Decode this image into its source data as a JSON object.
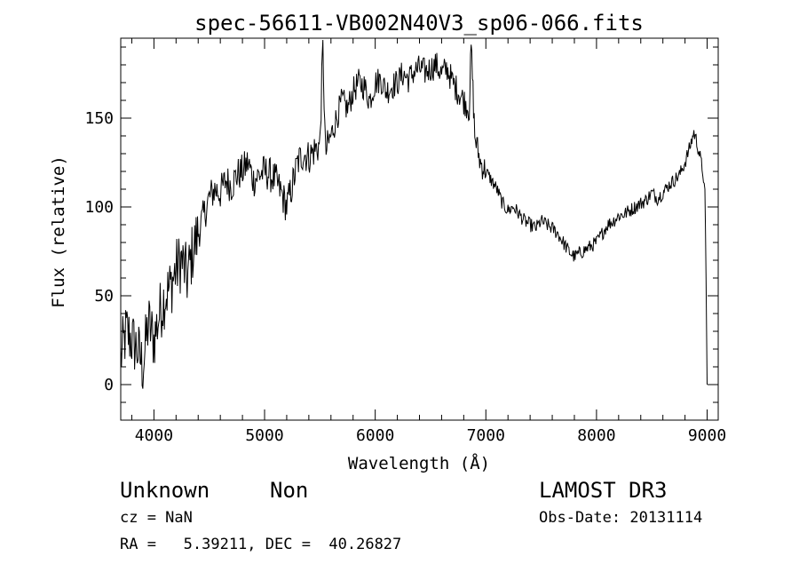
{
  "chart_data": {
    "type": "line",
    "title": "spec-56611-VB002N40V3_sp06-066.fits",
    "xlabel": "Wavelength (Å)",
    "ylabel": "Flux (relative)",
    "xlim": [
      3700,
      9100
    ],
    "ylim": [
      -20,
      195
    ],
    "x_ticks": [
      4000,
      5000,
      6000,
      7000,
      8000,
      9000
    ],
    "y_ticks": [
      0,
      50,
      100,
      150
    ],
    "grid": false,
    "series": [
      {
        "name": "spectrum",
        "x": [
          3700,
          3750,
          3800,
          3850,
          3900,
          3950,
          4000,
          4050,
          4100,
          4150,
          4200,
          4250,
          4300,
          4350,
          4400,
          4450,
          4500,
          4550,
          4600,
          4650,
          4700,
          4750,
          4800,
          4850,
          4900,
          4950,
          5000,
          5050,
          5100,
          5150,
          5200,
          5250,
          5300,
          5350,
          5400,
          5450,
          5500,
          5527,
          5550,
          5600,
          5650,
          5700,
          5750,
          5800,
          5850,
          5900,
          5950,
          6000,
          6050,
          6100,
          6150,
          6200,
          6250,
          6300,
          6350,
          6400,
          6450,
          6500,
          6550,
          6600,
          6650,
          6700,
          6750,
          6800,
          6850,
          6867,
          6900,
          6950,
          7000,
          7050,
          7100,
          7150,
          7200,
          7250,
          7300,
          7350,
          7400,
          7450,
          7500,
          7550,
          7600,
          7650,
          7700,
          7750,
          7800,
          7850,
          7900,
          7950,
          8000,
          8050,
          8100,
          8150,
          8200,
          8250,
          8300,
          8350,
          8400,
          8450,
          8500,
          8550,
          8600,
          8650,
          8700,
          8750,
          8800,
          8850,
          8880,
          8900,
          8930,
          8960,
          8980,
          8990,
          9000
        ],
        "y": [
          15,
          30,
          25,
          20,
          10,
          35,
          25,
          40,
          50,
          55,
          65,
          70,
          60,
          75,
          85,
          95,
          105,
          110,
          108,
          115,
          112,
          118,
          120,
          125,
          115,
          118,
          120,
          118,
          115,
          108,
          100,
          112,
          125,
          130,
          128,
          132,
          135,
          192,
          130,
          140,
          150,
          160,
          155,
          165,
          170,
          168,
          160,
          170,
          172,
          165,
          168,
          170,
          175,
          172,
          176,
          178,
          176,
          178,
          180,
          175,
          178,
          170,
          165,
          160,
          155,
          190,
          140,
          125,
          120,
          115,
          110,
          102,
          98,
          100,
          96,
          92,
          90,
          88,
          92,
          90,
          88,
          85,
          80,
          75,
          72,
          74,
          76,
          78,
          80,
          85,
          90,
          92,
          95,
          96,
          98,
          100,
          102,
          104,
          108,
          105,
          108,
          112,
          115,
          118,
          125,
          135,
          142,
          138,
          130,
          120,
          110,
          60,
          0
        ]
      }
    ]
  },
  "footer": {
    "object_class": "Unknown",
    "object_subclass": "Non",
    "survey": "LAMOST DR3",
    "cz_line": "cz = NaN",
    "obs_date_line": "Obs-Date: 20131114",
    "coords_line": "RA =   5.39211, DEC =  40.26827"
  },
  "colors": {
    "background": "#ffffff",
    "foreground": "#000000"
  }
}
